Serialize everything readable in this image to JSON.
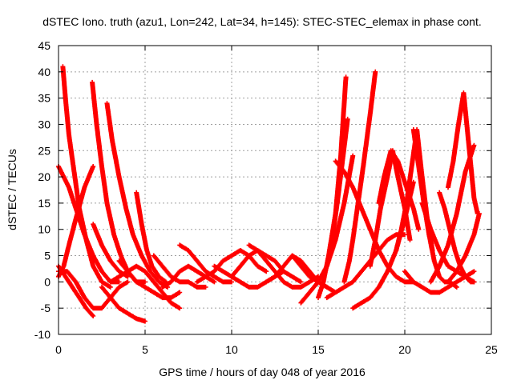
{
  "chart_data": {
    "type": "scatter",
    "title": "dSTEC Iono. truth (azu1, Lon=242, Lat=34, h=145): STEC-STEC_elemax in phase cont.",
    "xlabel": "GPS time / hours of day 048 of year 2016",
    "ylabel": "dSTEC  / TECUs",
    "xlim": [
      0,
      25
    ],
    "ylim": [
      -10,
      45
    ],
    "xticks": [
      0,
      5,
      10,
      15,
      20,
      25
    ],
    "yticks": [
      -10,
      -5,
      0,
      5,
      10,
      15,
      20,
      25,
      30,
      35,
      40,
      45
    ],
    "grid": true,
    "marker": "+",
    "color": "#ff0000",
    "series": [
      {
        "x": [
          0.0,
          0.3,
          0.6,
          1.0,
          1.5,
          2.0,
          2.5,
          3.0,
          3.5
        ],
        "y": [
          22,
          20,
          18,
          14,
          9,
          5,
          2,
          0,
          0
        ]
      },
      {
        "x": [
          0.25,
          0.4,
          0.6,
          0.9,
          1.2,
          1.6,
          2.0,
          2.5,
          3.0
        ],
        "y": [
          41,
          35,
          28,
          21,
          14,
          8,
          3,
          0,
          -1
        ]
      },
      {
        "x": [
          0.0,
          0.3,
          0.6,
          1.0,
          1.5,
          2.0
        ],
        "y": [
          1,
          3,
          7,
          12,
          18,
          22
        ]
      },
      {
        "x": [
          0.0,
          0.4,
          0.8,
          1.2,
          1.6,
          2.0
        ],
        "y": [
          3,
          1,
          -1,
          -3,
          -5,
          -6.5
        ]
      },
      {
        "x": [
          0.0,
          0.5,
          1.0,
          1.5,
          2.0,
          2.5,
          3.0,
          3.5,
          4.0
        ],
        "y": [
          2,
          2,
          0,
          -3,
          -5,
          -5,
          -3,
          -1,
          0
        ]
      },
      {
        "x": [
          1.95,
          2.2,
          2.5,
          2.8,
          3.2,
          3.6,
          4.0,
          4.5,
          5.0
        ],
        "y": [
          38,
          30,
          22,
          15,
          9,
          5,
          2,
          0,
          0
        ]
      },
      {
        "x": [
          2.0,
          2.5,
          3.0,
          3.5,
          4.0
        ],
        "y": [
          11,
          7,
          4,
          2,
          1
        ]
      },
      {
        "x": [
          2.8,
          3.1,
          3.5,
          3.9,
          4.3,
          4.8,
          5.3,
          5.8,
          6.3
        ],
        "y": [
          34,
          27,
          20,
          14,
          9,
          5,
          2,
          0,
          -1
        ]
      },
      {
        "x": [
          2.5,
          3.0,
          3.5,
          4.0,
          4.5,
          5.0
        ],
        "y": [
          -1,
          -3,
          -5,
          -6,
          -7,
          -7.5
        ]
      },
      {
        "x": [
          3.0,
          3.5,
          4.0,
          4.5,
          5.0,
          5.5,
          6.0,
          6.5,
          7.0
        ],
        "y": [
          0,
          1,
          2,
          3,
          2,
          0,
          -2,
          -4,
          -5
        ]
      },
      {
        "x": [
          4.5,
          4.8,
          5.1,
          5.4,
          5.8,
          6.2
        ],
        "y": [
          17,
          11,
          6,
          3,
          1,
          0
        ]
      },
      {
        "x": [
          3.5,
          4.0,
          4.5,
          5.0,
          5.5,
          6.0,
          6.5,
          7.0
        ],
        "y": [
          4,
          2,
          0,
          -1,
          -2,
          -3,
          -3,
          -2
        ]
      },
      {
        "x": [
          5.5,
          6.0,
          6.5,
          7.0,
          7.5,
          8.0,
          8.5
        ],
        "y": [
          5,
          3,
          1,
          0,
          0,
          -1,
          -1
        ]
      },
      {
        "x": [
          6.0,
          6.5,
          7.0,
          7.5,
          8.0,
          8.5,
          9.0
        ],
        "y": [
          -1,
          0,
          2,
          3,
          2,
          1,
          0
        ]
      },
      {
        "x": [
          7.0,
          7.5,
          8.0,
          8.5,
          9.0,
          9.5,
          10.0
        ],
        "y": [
          7,
          6,
          4,
          2,
          1,
          0,
          0
        ]
      },
      {
        "x": [
          8.0,
          8.5,
          9.0,
          9.5,
          10.0,
          10.5,
          11.0,
          11.5,
          12.0
        ],
        "y": [
          0,
          1,
          2,
          4,
          5,
          6,
          5,
          3,
          2
        ]
      },
      {
        "x": [
          9.0,
          9.5,
          10.0,
          10.5,
          11.0,
          11.5,
          12.0,
          12.5,
          13.0
        ],
        "y": [
          3,
          2,
          1,
          0,
          -1,
          -1,
          0,
          1,
          2
        ]
      },
      {
        "x": [
          10.0,
          10.5,
          11.0,
          11.5,
          12.0,
          12.5,
          13.0,
          13.5,
          14.0
        ],
        "y": [
          1,
          3,
          5,
          6,
          5,
          4,
          2,
          1,
          0
        ]
      },
      {
        "x": [
          11.0,
          11.5,
          12.0,
          12.5,
          13.0,
          13.5,
          14.0,
          14.5,
          15.0
        ],
        "y": [
          7,
          6,
          4,
          2,
          0,
          -1,
          -1,
          0,
          1
        ]
      },
      {
        "x": [
          12.0,
          12.5,
          13.0,
          13.5,
          14.0,
          14.5,
          15.0,
          15.5
        ],
        "y": [
          0,
          1,
          3,
          5,
          4,
          2,
          0,
          -1
        ]
      },
      {
        "x": [
          13.5,
          14.0,
          14.5,
          15.0,
          15.5,
          16.0
        ],
        "y": [
          5,
          3,
          1,
          0,
          -1,
          -2
        ]
      },
      {
        "x": [
          14.0,
          14.5,
          15.0,
          15.5,
          16.0,
          16.5,
          17.0
        ],
        "y": [
          -4,
          -2,
          0,
          3,
          8,
          15,
          24
        ]
      },
      {
        "x": [
          15.0,
          15.3,
          15.6,
          16.0,
          16.3,
          16.6
        ],
        "y": [
          -3,
          0,
          5,
          13,
          24,
          39
        ]
      },
      {
        "x": [
          15.5,
          15.8,
          16.1,
          16.4,
          16.7
        ],
        "y": [
          3,
          8,
          15,
          23,
          31
        ]
      },
      {
        "x": [
          16.5,
          16.8,
          17.0,
          17.3,
          17.6,
          18.0,
          18.3
        ],
        "y": [
          0,
          4,
          8,
          15,
          22,
          32,
          40
        ]
      },
      {
        "x": [
          15.5,
          16.0,
          16.5,
          17.0,
          17.5,
          18.0,
          18.5,
          19.0,
          19.5,
          20.0
        ],
        "y": [
          -3,
          -2,
          -1,
          0,
          2,
          4,
          6,
          8,
          9,
          9
        ]
      },
      {
        "x": [
          16.0,
          16.5,
          17.0,
          17.5,
          18.0,
          18.5,
          19.0,
          19.5,
          20.0,
          20.5
        ],
        "y": [
          23,
          21,
          18,
          14,
          10,
          6,
          3,
          1,
          0,
          0
        ]
      },
      {
        "x": [
          17.0,
          17.5,
          18.0,
          18.5,
          19.0,
          19.5,
          20.0,
          20.5
        ],
        "y": [
          -5,
          -4,
          -3,
          -1,
          2,
          6,
          12,
          19
        ]
      },
      {
        "x": [
          18.0,
          18.3,
          18.6,
          19.0,
          19.3,
          19.6,
          20.0,
          20.3
        ],
        "y": [
          3,
          8,
          14,
          20,
          25,
          20,
          14,
          8
        ]
      },
      {
        "x": [
          18.5,
          18.8,
          19.2,
          19.6,
          19.9,
          20.2,
          20.5,
          20.8
        ],
        "y": [
          15,
          20,
          25,
          23,
          20,
          17,
          14,
          10
        ]
      },
      {
        "x": [
          19.5,
          19.8,
          20.1,
          20.4,
          20.7,
          21.0,
          21.3,
          21.6
        ],
        "y": [
          6,
          10,
          15,
          22,
          29,
          20,
          12,
          6
        ]
      },
      {
        "x": [
          20.5,
          20.8,
          21.1,
          21.4,
          21.7,
          22.0,
          22.3,
          22.6,
          23.0
        ],
        "y": [
          29,
          22,
          15,
          9,
          4,
          1,
          0,
          0,
          -1
        ]
      },
      {
        "x": [
          21.0,
          21.5,
          22.0,
          22.5,
          23.0,
          23.5,
          24.0
        ],
        "y": [
          15,
          10,
          6,
          3,
          2,
          1,
          0
        ]
      },
      {
        "x": [
          22.0,
          22.3,
          22.6,
          22.9,
          23.2,
          23.5,
          23.8,
          24.0
        ],
        "y": [
          17,
          14,
          10,
          6,
          3,
          1,
          0,
          0
        ]
      },
      {
        "x": [
          21.5,
          22.0,
          22.5,
          23.0,
          23.5,
          24.0
        ],
        "y": [
          0,
          3,
          7,
          13,
          21,
          26
        ]
      },
      {
        "x": [
          22.5,
          22.8,
          23.1,
          23.4,
          23.7,
          24.0,
          24.2
        ],
        "y": [
          18,
          23,
          30,
          36,
          26,
          16,
          13
        ]
      },
      {
        "x": [
          22.5,
          23.0,
          23.5,
          24.0,
          24.3
        ],
        "y": [
          0,
          2,
          5,
          9,
          13
        ]
      },
      {
        "x": [
          20.0,
          20.5,
          21.0,
          21.5,
          22.0,
          22.5,
          23.0,
          23.5,
          24.0
        ],
        "y": [
          2,
          0,
          -1,
          -2,
          -2,
          -1,
          0,
          1,
          2
        ]
      }
    ]
  }
}
